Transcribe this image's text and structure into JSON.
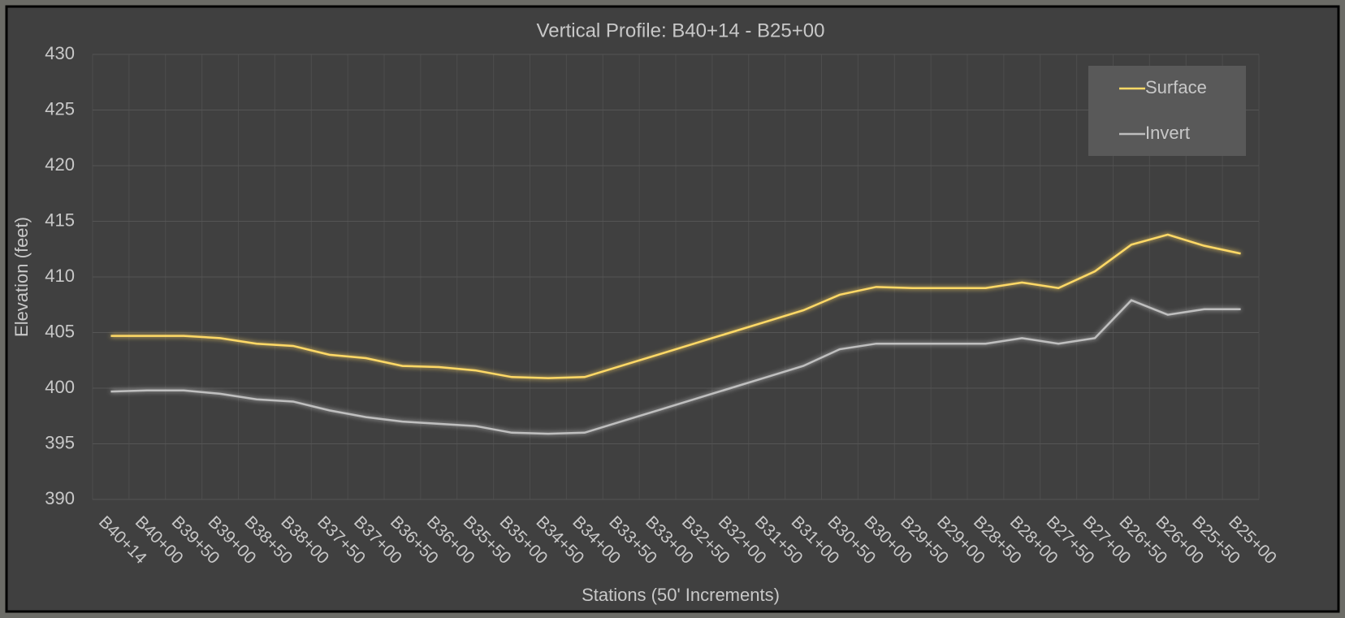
{
  "chart_data": {
    "type": "line",
    "title": "Vertical Profile: B40+14 - B25+00",
    "x_label": "Stations (50' Increments)",
    "y_label": "Elevation (feet)",
    "categories": [
      "B40+14",
      "B40+00",
      "B39+50",
      "B39+00",
      "B38+50",
      "B38+00",
      "B37+50",
      "B37+00",
      "B36+50",
      "B36+00",
      "B35+50",
      "B35+00",
      "B34+50",
      "B34+00",
      "B33+50",
      "B33+00",
      "B32+50",
      "B32+00",
      "B31+50",
      "B31+00",
      "B30+50",
      "B30+00",
      "B29+50",
      "B29+00",
      "B28+50",
      "B28+00",
      "B27+50",
      "B27+00",
      "B26+50",
      "B26+00",
      "B25+50",
      "B25+00"
    ],
    "series": [
      {
        "name": "Surface",
        "color": "#ffd966",
        "values": [
          404.7,
          404.7,
          404.7,
          404.5,
          404,
          403.8,
          403,
          402.7,
          402,
          401.9,
          401.6,
          401,
          400.9,
          401,
          402,
          403,
          404,
          405,
          406,
          407,
          408.4,
          409.1,
          409,
          409,
          409,
          409.5,
          409,
          410.5,
          412.9,
          413.8,
          412.8,
          412.1
        ]
      },
      {
        "name": "Invert",
        "color": "#bfbfbf",
        "values": [
          399.7,
          399.8,
          399.8,
          399.5,
          399,
          398.8,
          398,
          397.4,
          397,
          396.8,
          396.6,
          396,
          395.9,
          396,
          397,
          398,
          399,
          400,
          401,
          402,
          403.5,
          404,
          404,
          404,
          404,
          404.5,
          404,
          404.5,
          407.9,
          406.6,
          407.1,
          407.1
        ]
      }
    ],
    "ylim": [
      390,
      430
    ],
    "yticks": [
      390,
      395,
      400,
      405,
      410,
      415,
      420,
      425,
      430
    ],
    "grid": true,
    "legend": "top-right"
  }
}
